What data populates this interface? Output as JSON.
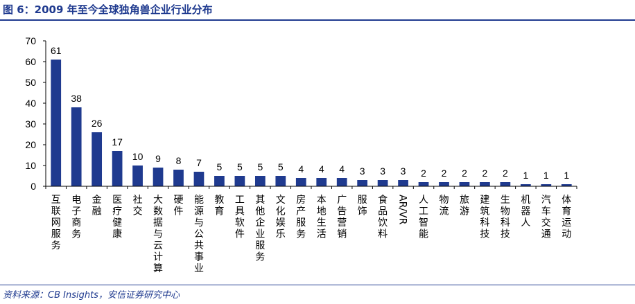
{
  "header": {
    "title": "图 6：2009 年至今全球独角兽企业行业分布"
  },
  "footer": {
    "source": "资料来源：CB Insights，安信证券研究中心"
  },
  "colors": {
    "bar": "#1f3a8f",
    "title": "#1f3a8f",
    "axis": "#000000"
  },
  "chart_data": {
    "type": "bar",
    "title": "",
    "xlabel": "",
    "ylabel": "",
    "ylim": [
      0,
      70
    ],
    "yticks": [
      0,
      10,
      20,
      30,
      40,
      50,
      60,
      70
    ],
    "grid": false,
    "legend": "none",
    "categories": [
      "互联网服务",
      "电子商务",
      "金融",
      "医疗健康",
      "社交",
      "大数据与云计算",
      "硬件",
      "能源与公共事业",
      "教育",
      "工具软件",
      "其他企业服务",
      "文化娱乐",
      "房产服务",
      "本地生活",
      "广告营销",
      "服饰",
      "食品饮料",
      "AR/VR",
      "人工智能",
      "物流",
      "旅游",
      "建筑科技",
      "生物科技",
      "机器人",
      "汽车交通",
      "体育运动"
    ],
    "values": [
      61,
      38,
      26,
      17,
      10,
      9,
      8,
      7,
      5,
      5,
      5,
      5,
      4,
      4,
      4,
      3,
      3,
      3,
      2,
      2,
      2,
      2,
      2,
      1,
      1,
      1
    ]
  }
}
